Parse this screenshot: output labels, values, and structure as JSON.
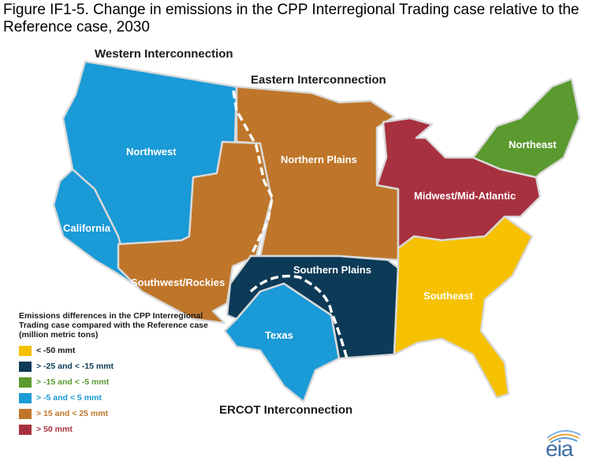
{
  "title": "Figure IF1-5. Change in emissions in the CPP Interregional Trading case relative to the Reference case, 2030",
  "interconnections": {
    "western": "Western Interconnection",
    "eastern": "Eastern Interconnection",
    "ercot": "ERCOT Interconnection"
  },
  "regions": [
    {
      "name": "Northwest",
      "category": "> -5 and < 5 mmt",
      "color": "#1a9ad6"
    },
    {
      "name": "California",
      "category": "> -5 and < 5 mmt",
      "color": "#1a9ad6"
    },
    {
      "name": "Southwest/Rockies",
      "category": "> 15 and < 25 mmt",
      "color": "#bf762a"
    },
    {
      "name": "Northern Plains",
      "category": "> 15 and < 25 mmt",
      "color": "#bf762a"
    },
    {
      "name": "Southern Plains",
      "category": "> -25 and < -15 mmt",
      "color": "#0d3a57"
    },
    {
      "name": "Texas",
      "category": "> -5 and < 5 mmt",
      "color": "#1a9ad6"
    },
    {
      "name": "Midwest/Mid-Atlantic",
      "category": "> 50 mmt",
      "color": "#a8313f"
    },
    {
      "name": "Southeast",
      "category": "< -50 mmt",
      "color": "#f5c100"
    },
    {
      "name": "Northeast",
      "category": "> -15 and < -5 mmt",
      "color": "#5a9a2f"
    }
  ],
  "legend": {
    "title": "Emissions differences in the CPP Interregional Trading case compared with the Reference case (million metric tons)",
    "items": [
      {
        "label": "< -50 mmt",
        "color": "#f5c100",
        "text_color": "#1a1a1a"
      },
      {
        "label": "> -25 and < -15 mmt",
        "color": "#0d3a57",
        "text_color": "#0d3a57"
      },
      {
        "label": "-15 and < -5 mmt",
        "color": "#5a9a2f",
        "text_color": "#5a9a2f",
        "prefix": "> "
      },
      {
        "label": "> -5 and < 5 mmt",
        "color": "#1a9ad6",
        "text_color": "#1a9ad6"
      },
      {
        "label": "> 15 and < 25 mmt",
        "color": "#bf762a",
        "text_color": "#bf762a"
      },
      {
        "label": "> 50 mmt",
        "color": "#a8313f",
        "text_color": "#a8313f"
      }
    ]
  },
  "logo": "eia"
}
